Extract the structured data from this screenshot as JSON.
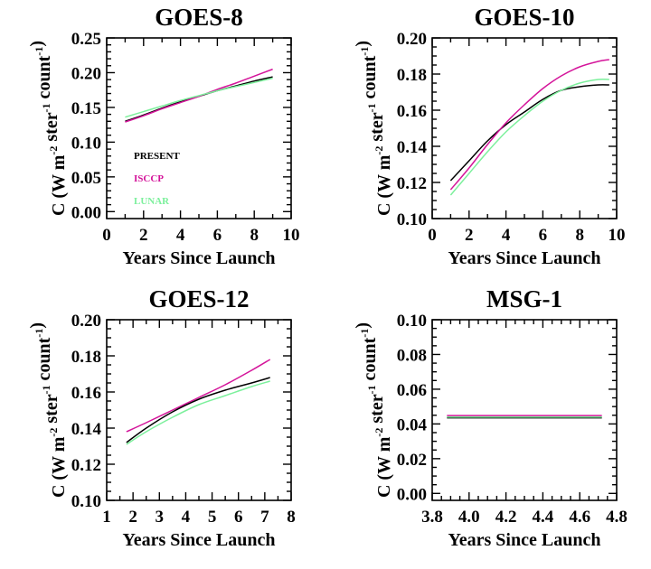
{
  "colors": {
    "present": "#000000",
    "isccp": "#d4149a",
    "lunar": "#7cf09c"
  },
  "chart_data": [
    {
      "type": "line",
      "title": "GOES-8",
      "xlabel": "Years Since Launch",
      "ylabel": "C (W m-2 ster-1 count-1)",
      "xlim": [
        0,
        10
      ],
      "ylim": [
        -0.01,
        0.25
      ],
      "xticks": [
        0,
        2,
        4,
        6,
        8,
        10
      ],
      "xtick_labels": [
        "0",
        "2",
        "4",
        "6",
        "8",
        "10"
      ],
      "xminor": 1,
      "yticks": [
        0.0,
        0.05,
        0.1,
        0.15,
        0.2,
        0.25
      ],
      "ytick_labels": [
        "0.00",
        "0.05",
        "0.10",
        "0.15",
        "0.20",
        "0.25"
      ],
      "yminor": 0.01,
      "legend": {
        "placement": "lower-left",
        "entries": [
          {
            "label": "PRESENT",
            "color": "#000000"
          },
          {
            "label": "ISCCP",
            "color": "#d4149a"
          },
          {
            "label": "LUNAR",
            "color": "#7cf09c"
          }
        ]
      },
      "series": [
        {
          "name": "PRESENT",
          "color": "#000000",
          "x": [
            1,
            2,
            3,
            4,
            5,
            6,
            7,
            8,
            9
          ],
          "y": [
            0.13,
            0.139,
            0.149,
            0.158,
            0.166,
            0.174,
            0.181,
            0.188,
            0.194
          ]
        },
        {
          "name": "ISCCP",
          "color": "#d4149a",
          "x": [
            1,
            2,
            3,
            4,
            5,
            6,
            7,
            8,
            9
          ],
          "y": [
            0.129,
            0.138,
            0.148,
            0.157,
            0.166,
            0.176,
            0.185,
            0.195,
            0.205
          ]
        },
        {
          "name": "LUNAR",
          "color": "#7cf09c",
          "x": [
            1,
            2,
            3,
            4,
            5,
            6,
            7,
            8,
            9
          ],
          "y": [
            0.136,
            0.144,
            0.152,
            0.16,
            0.167,
            0.174,
            0.18,
            0.186,
            0.192
          ]
        }
      ]
    },
    {
      "type": "line",
      "title": "GOES-10",
      "xlabel": "Years Since Launch",
      "ylabel": "C (W m-2 ster-1 count-1)",
      "xlim": [
        0,
        10
      ],
      "ylim": [
        0.1,
        0.2
      ],
      "xticks": [
        0,
        2,
        4,
        6,
        8,
        10
      ],
      "xtick_labels": [
        "0",
        "2",
        "4",
        "6",
        "8",
        "10"
      ],
      "xminor": 1,
      "yticks": [
        0.1,
        0.12,
        0.14,
        0.16,
        0.18,
        0.2
      ],
      "ytick_labels": [
        "0.10",
        "0.12",
        "0.14",
        "0.16",
        "0.18",
        "0.20"
      ],
      "yminor": 0.005,
      "series": [
        {
          "name": "PRESENT",
          "color": "#000000",
          "x": [
            1,
            2,
            3,
            4,
            5,
            6,
            7,
            8,
            9,
            9.6
          ],
          "y": [
            0.121,
            0.132,
            0.143,
            0.152,
            0.159,
            0.166,
            0.171,
            0.173,
            0.174,
            0.174
          ]
        },
        {
          "name": "ISCCP",
          "color": "#d4149a",
          "x": [
            1,
            2,
            3,
            4,
            5,
            6,
            7,
            8,
            9,
            9.6
          ],
          "y": [
            0.116,
            0.128,
            0.141,
            0.153,
            0.163,
            0.172,
            0.179,
            0.184,
            0.187,
            0.188
          ]
        },
        {
          "name": "LUNAR",
          "color": "#7cf09c",
          "x": [
            1,
            2,
            3,
            4,
            5,
            6,
            7,
            8,
            9,
            9.6
          ],
          "y": [
            0.113,
            0.125,
            0.137,
            0.148,
            0.157,
            0.165,
            0.171,
            0.175,
            0.177,
            0.177
          ]
        }
      ]
    },
    {
      "type": "line",
      "title": "GOES-12",
      "xlabel": "Years Since Launch",
      "ylabel": "C (W m-2 ster-1 count-1)",
      "xlim": [
        1,
        8
      ],
      "ylim": [
        0.1,
        0.2
      ],
      "xticks": [
        1,
        2,
        3,
        4,
        5,
        6,
        7,
        8
      ],
      "xtick_labels": [
        "1",
        "2",
        "3",
        "4",
        "5",
        "6",
        "7",
        "8"
      ],
      "xminor": 0.5,
      "yticks": [
        0.1,
        0.12,
        0.14,
        0.16,
        0.18,
        0.2
      ],
      "ytick_labels": [
        "0.10",
        "0.12",
        "0.14",
        "0.16",
        "0.18",
        "0.20"
      ],
      "yminor": 0.005,
      "series": [
        {
          "name": "PRESENT",
          "color": "#000000",
          "x": [
            1.75,
            2.5,
            3.5,
            4.5,
            5.5,
            6.5,
            7.2
          ],
          "y": [
            0.132,
            0.14,
            0.149,
            0.156,
            0.161,
            0.165,
            0.168
          ]
        },
        {
          "name": "ISCCP",
          "color": "#d4149a",
          "x": [
            1.75,
            2.5,
            3.5,
            4.5,
            5.5,
            6.5,
            7.2
          ],
          "y": [
            0.138,
            0.143,
            0.15,
            0.157,
            0.164,
            0.172,
            0.178
          ]
        },
        {
          "name": "LUNAR",
          "color": "#7cf09c",
          "x": [
            1.75,
            2.5,
            3.5,
            4.5,
            5.5,
            6.5,
            7.2
          ],
          "y": [
            0.131,
            0.138,
            0.146,
            0.153,
            0.158,
            0.163,
            0.166
          ]
        }
      ]
    },
    {
      "type": "line",
      "title": "MSG-1",
      "xlabel": "Years Since Launch",
      "ylabel": "C (W m-2 ster-1 count-1)",
      "xlim": [
        3.8,
        4.8
      ],
      "ylim": [
        -0.004,
        0.1
      ],
      "xticks": [
        3.8,
        4.0,
        4.2,
        4.4,
        4.6,
        4.8
      ],
      "xtick_labels": [
        "3.8",
        "4.0",
        "4.2",
        "4.4",
        "4.6",
        "4.8"
      ],
      "xminor": 0.05,
      "yticks": [
        0.0,
        0.02,
        0.04,
        0.06,
        0.08,
        0.1
      ],
      "ytick_labels": [
        "0.00",
        "0.02",
        "0.04",
        "0.06",
        "0.08",
        "0.10"
      ],
      "yminor": 0.005,
      "series": [
        {
          "name": "PRESENT",
          "color": "#000000",
          "x": [
            3.88,
            4.72
          ],
          "y": [
            0.0435,
            0.0435
          ]
        },
        {
          "name": "ISCCP",
          "color": "#d4149a",
          "x": [
            3.88,
            4.72
          ],
          "y": [
            0.0448,
            0.0448
          ]
        },
        {
          "name": "LUNAR",
          "color": "#7cf09c",
          "x": [
            3.88,
            4.72
          ],
          "y": [
            0.044,
            0.044
          ]
        }
      ]
    }
  ]
}
